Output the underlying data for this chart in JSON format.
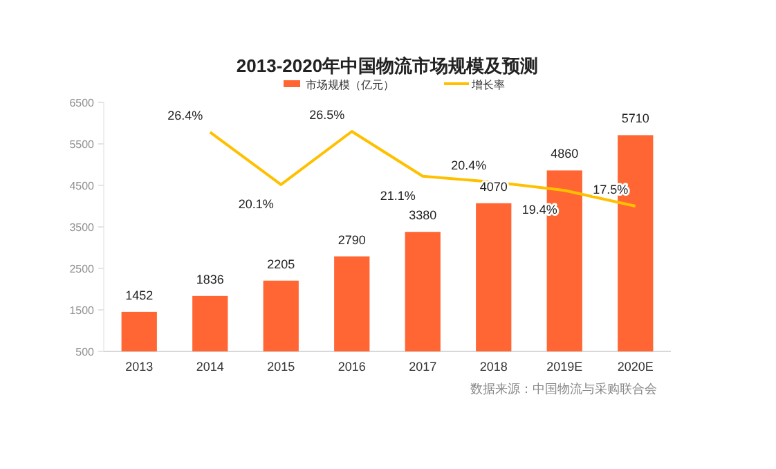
{
  "chart_data": {
    "type": "bar",
    "title": "2013-2020年中国物流市场规模及预测",
    "categories": [
      "2013",
      "2014",
      "2015",
      "2016",
      "2017",
      "2018",
      "2019E",
      "2020E"
    ],
    "series": [
      {
        "name": "市场规模（亿元）",
        "color": "#ff6633",
        "values": [
          1452,
          1836,
          2205,
          2790,
          3380,
          4070,
          4860,
          5710
        ],
        "value_labels": [
          "1452",
          "1836",
          "2205",
          "2790",
          "3380",
          "4070",
          "4860",
          "5710"
        ]
      },
      {
        "name": "增长率",
        "type": "line",
        "axis": "y2",
        "color": "#ffc000",
        "values": [
          null,
          26.4,
          20.1,
          26.5,
          21.1,
          20.4,
          19.4,
          17.5
        ],
        "value_labels": [
          null,
          "26.4%",
          "20.1%",
          "26.5%",
          "21.1%",
          "20.4%",
          "19.4%",
          "17.5%"
        ]
      }
    ],
    "ylim": [
      500,
      6500
    ],
    "yticks": [
      500,
      1500,
      2500,
      3500,
      4500,
      5500,
      6500
    ],
    "y2lim": [
      0,
      30
    ],
    "legend": "top",
    "grid": false,
    "marker": "none",
    "line_style": "solid",
    "annotations": [
      "数据来源：中国物流与采购联合会"
    ]
  }
}
